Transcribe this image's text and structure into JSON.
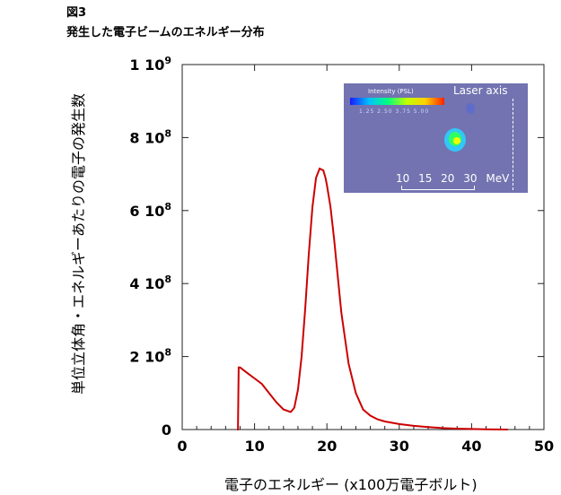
{
  "figure": {
    "label": "図3",
    "title": "発生した電子ビームのエネルギー分布"
  },
  "chart_data": {
    "type": "line",
    "xlabel": "電子のエネルギー (x100万電子ボルト)",
    "ylabel": "単位立体角・エネルギーあたりの電子の発生数",
    "xlim": [
      0,
      50
    ],
    "ylim": [
      0,
      1000000000
    ],
    "x_ticks": [
      "0",
      "10",
      "20",
      "30",
      "40",
      "50"
    ],
    "y_ticks": [
      {
        "mant": "0",
        "exp": ""
      },
      {
        "mant": "2 10",
        "exp": "8"
      },
      {
        "mant": "4 10",
        "exp": "8"
      },
      {
        "mant": "6 10",
        "exp": "8"
      },
      {
        "mant": "8 10",
        "exp": "8"
      },
      {
        "mant": "1 10",
        "exp": "9"
      }
    ],
    "y_tick_values": [
      0,
      200000000,
      400000000,
      600000000,
      800000000,
      1000000000
    ],
    "grid": false,
    "line_color": "#cc0000",
    "series": [
      {
        "x": [
          7.6,
          7.7,
          7.8,
          8.0,
          9.0,
          10.0,
          11.0,
          12.0,
          13.0,
          14.0,
          15.0,
          15.5,
          16.0,
          16.5,
          17.0,
          17.5,
          18.0,
          18.5,
          19.0,
          19.5,
          19.8,
          20.0,
          20.5,
          21.0,
          21.5,
          22.0,
          23.0,
          24.0,
          25.0,
          26.0,
          27.0,
          28.0,
          30.0,
          32.0,
          34.0,
          36.0,
          38.0,
          40.0,
          42.0,
          45.0
        ],
        "y": [
          0,
          0,
          170000000,
          170000000,
          155000000,
          140000000,
          125000000,
          100000000,
          75000000,
          55000000,
          48000000,
          60000000,
          110000000,
          200000000,
          330000000,
          480000000,
          610000000,
          690000000,
          715000000,
          710000000,
          690000000,
          670000000,
          610000000,
          520000000,
          420000000,
          320000000,
          180000000,
          100000000,
          55000000,
          38000000,
          28000000,
          22000000,
          15000000,
          10000000,
          7000000,
          4000000,
          2500000,
          1500000,
          500000,
          0
        ]
      }
    ]
  },
  "inset": {
    "scale_title": "Intensity (PSL)",
    "scale_ticks": "1.25  2.50  3.75  5.00",
    "axis_label": "Laser axis",
    "energy_ticks": "10   15  20  30  MeV",
    "background": "#7273b0"
  }
}
